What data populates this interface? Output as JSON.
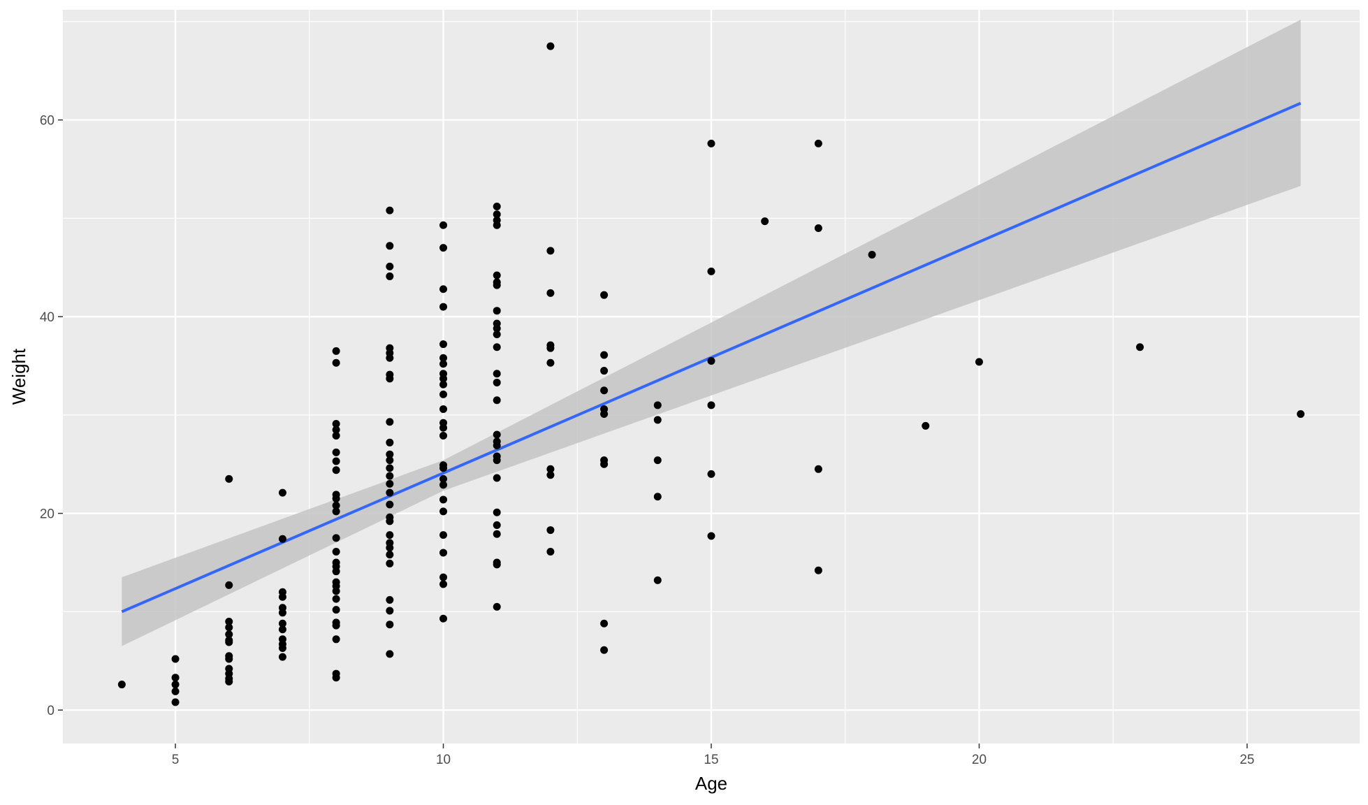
{
  "chart_data": {
    "type": "scatter",
    "title": "",
    "xlabel": "Age",
    "ylabel": "Weight",
    "xlim": [
      2.9,
      27.1
    ],
    "ylim": [
      -3.4,
      71.2
    ],
    "x_ticks": [
      5,
      10,
      15,
      20,
      25
    ],
    "y_ticks": [
      0,
      20,
      40,
      60
    ],
    "x_minor": [
      7.5,
      12.5,
      17.5,
      22.5
    ],
    "y_minor": [
      10,
      30,
      50,
      70
    ],
    "grid": true,
    "legend": "none",
    "colors": {
      "panel": "#ebebeb",
      "grid": "#ffffff",
      "points": "#000000",
      "fit_line": "#3366ff",
      "confidence_band": "#c4c4c4"
    },
    "fit": {
      "method": "linear regression",
      "x_range": [
        4,
        26
      ],
      "line": [
        [
          4,
          10.0
        ],
        [
          26,
          61.7
        ]
      ],
      "band": [
        [
          4,
          6.5,
          13.5
        ],
        [
          10,
          22.3,
          25.4
        ],
        [
          26,
          53.3,
          70.2
        ]
      ]
    },
    "points": [
      [
        4,
        2.6
      ],
      [
        5,
        5.2
      ],
      [
        5,
        3.3
      ],
      [
        5,
        2.6
      ],
      [
        5,
        1.9
      ],
      [
        5,
        0.8
      ],
      [
        6,
        23.5
      ],
      [
        6,
        12.7
      ],
      [
        6,
        9.0
      ],
      [
        6,
        8.4
      ],
      [
        6,
        7.7
      ],
      [
        6,
        7.1
      ],
      [
        6,
        6.9
      ],
      [
        6,
        5.5
      ],
      [
        6,
        5.2
      ],
      [
        6,
        4.2
      ],
      [
        6,
        3.7
      ],
      [
        6,
        3.2
      ],
      [
        6,
        2.9
      ],
      [
        7,
        22.1
      ],
      [
        7,
        17.4
      ],
      [
        7,
        12.0
      ],
      [
        7,
        11.5
      ],
      [
        7,
        10.4
      ],
      [
        7,
        9.9
      ],
      [
        7,
        8.8
      ],
      [
        7,
        8.2
      ],
      [
        7,
        7.2
      ],
      [
        7,
        6.7
      ],
      [
        7,
        6.3
      ],
      [
        7,
        5.4
      ],
      [
        8,
        36.5
      ],
      [
        8,
        35.3
      ],
      [
        8,
        29.1
      ],
      [
        8,
        28.5
      ],
      [
        8,
        27.9
      ],
      [
        8,
        26.2
      ],
      [
        8,
        25.3
      ],
      [
        8,
        24.4
      ],
      [
        8,
        21.9
      ],
      [
        8,
        21.5
      ],
      [
        8,
        20.8
      ],
      [
        8,
        20.2
      ],
      [
        8,
        17.5
      ],
      [
        8,
        16.1
      ],
      [
        8,
        15.0
      ],
      [
        8,
        14.6
      ],
      [
        8,
        14.1
      ],
      [
        8,
        13.0
      ],
      [
        8,
        12.6
      ],
      [
        8,
        12.1
      ],
      [
        8,
        11.3
      ],
      [
        8,
        10.2
      ],
      [
        8,
        8.9
      ],
      [
        8,
        8.6
      ],
      [
        8,
        7.2
      ],
      [
        8,
        3.7
      ],
      [
        8,
        3.3
      ],
      [
        9,
        50.8
      ],
      [
        9,
        47.2
      ],
      [
        9,
        45.1
      ],
      [
        9,
        44.1
      ],
      [
        9,
        36.8
      ],
      [
        9,
        36.3
      ],
      [
        9,
        35.8
      ],
      [
        9,
        34.1
      ],
      [
        9,
        33.7
      ],
      [
        9,
        29.3
      ],
      [
        9,
        27.2
      ],
      [
        9,
        26.0
      ],
      [
        9,
        25.4
      ],
      [
        9,
        24.6
      ],
      [
        9,
        23.8
      ],
      [
        9,
        23.0
      ],
      [
        9,
        22.1
      ],
      [
        9,
        20.9
      ],
      [
        9,
        19.6
      ],
      [
        9,
        19.2
      ],
      [
        9,
        17.8
      ],
      [
        9,
        17.0
      ],
      [
        9,
        16.5
      ],
      [
        9,
        15.8
      ],
      [
        9,
        14.9
      ],
      [
        9,
        11.2
      ],
      [
        9,
        10.1
      ],
      [
        9,
        8.7
      ],
      [
        9,
        5.7
      ],
      [
        10,
        49.3
      ],
      [
        10,
        47.0
      ],
      [
        10,
        42.8
      ],
      [
        10,
        41.0
      ],
      [
        10,
        37.2
      ],
      [
        10,
        35.8
      ],
      [
        10,
        35.2
      ],
      [
        10,
        34.2
      ],
      [
        10,
        33.7
      ],
      [
        10,
        33.1
      ],
      [
        10,
        32.1
      ],
      [
        10,
        30.6
      ],
      [
        10,
        29.2
      ],
      [
        10,
        28.7
      ],
      [
        10,
        27.9
      ],
      [
        10,
        24.9
      ],
      [
        10,
        24.6
      ],
      [
        10,
        23.5
      ],
      [
        10,
        22.9
      ],
      [
        10,
        21.4
      ],
      [
        10,
        20.2
      ],
      [
        10,
        17.8
      ],
      [
        10,
        16.0
      ],
      [
        10,
        13.5
      ],
      [
        10,
        12.8
      ],
      [
        10,
        9.3
      ],
      [
        11,
        51.2
      ],
      [
        11,
        50.4
      ],
      [
        11,
        49.8
      ],
      [
        11,
        49.3
      ],
      [
        11,
        44.2
      ],
      [
        11,
        43.5
      ],
      [
        11,
        43.2
      ],
      [
        11,
        40.6
      ],
      [
        11,
        39.3
      ],
      [
        11,
        38.8
      ],
      [
        11,
        38.2
      ],
      [
        11,
        36.9
      ],
      [
        11,
        34.2
      ],
      [
        11,
        33.3
      ],
      [
        11,
        31.5
      ],
      [
        11,
        28.0
      ],
      [
        11,
        27.3
      ],
      [
        11,
        26.9
      ],
      [
        11,
        25.8
      ],
      [
        11,
        25.4
      ],
      [
        11,
        23.6
      ],
      [
        11,
        20.1
      ],
      [
        11,
        18.8
      ],
      [
        11,
        17.9
      ],
      [
        11,
        15.0
      ],
      [
        11,
        14.8
      ],
      [
        11,
        10.5
      ],
      [
        12,
        67.5
      ],
      [
        12,
        46.7
      ],
      [
        12,
        42.4
      ],
      [
        12,
        37.1
      ],
      [
        12,
        36.8
      ],
      [
        12,
        35.3
      ],
      [
        12,
        24.5
      ],
      [
        12,
        23.9
      ],
      [
        12,
        18.3
      ],
      [
        12,
        16.1
      ],
      [
        13,
        42.2
      ],
      [
        13,
        36.1
      ],
      [
        13,
        34.5
      ],
      [
        13,
        32.5
      ],
      [
        13,
        30.6
      ],
      [
        13,
        30.1
      ],
      [
        13,
        25.4
      ],
      [
        13,
        25.0
      ],
      [
        13,
        8.8
      ],
      [
        13,
        6.1
      ],
      [
        14,
        31.0
      ],
      [
        14,
        29.5
      ],
      [
        14,
        25.4
      ],
      [
        14,
        21.7
      ],
      [
        14,
        13.2
      ],
      [
        15,
        57.6
      ],
      [
        15,
        44.6
      ],
      [
        15,
        35.5
      ],
      [
        15,
        31.0
      ],
      [
        15,
        24.0
      ],
      [
        15,
        17.7
      ],
      [
        16,
        49.7
      ],
      [
        17,
        57.6
      ],
      [
        17,
        49.0
      ],
      [
        17,
        24.5
      ],
      [
        17,
        14.2
      ],
      [
        18,
        46.3
      ],
      [
        19,
        28.9
      ],
      [
        20,
        35.4
      ],
      [
        23,
        36.9
      ],
      [
        26,
        30.1
      ]
    ]
  }
}
